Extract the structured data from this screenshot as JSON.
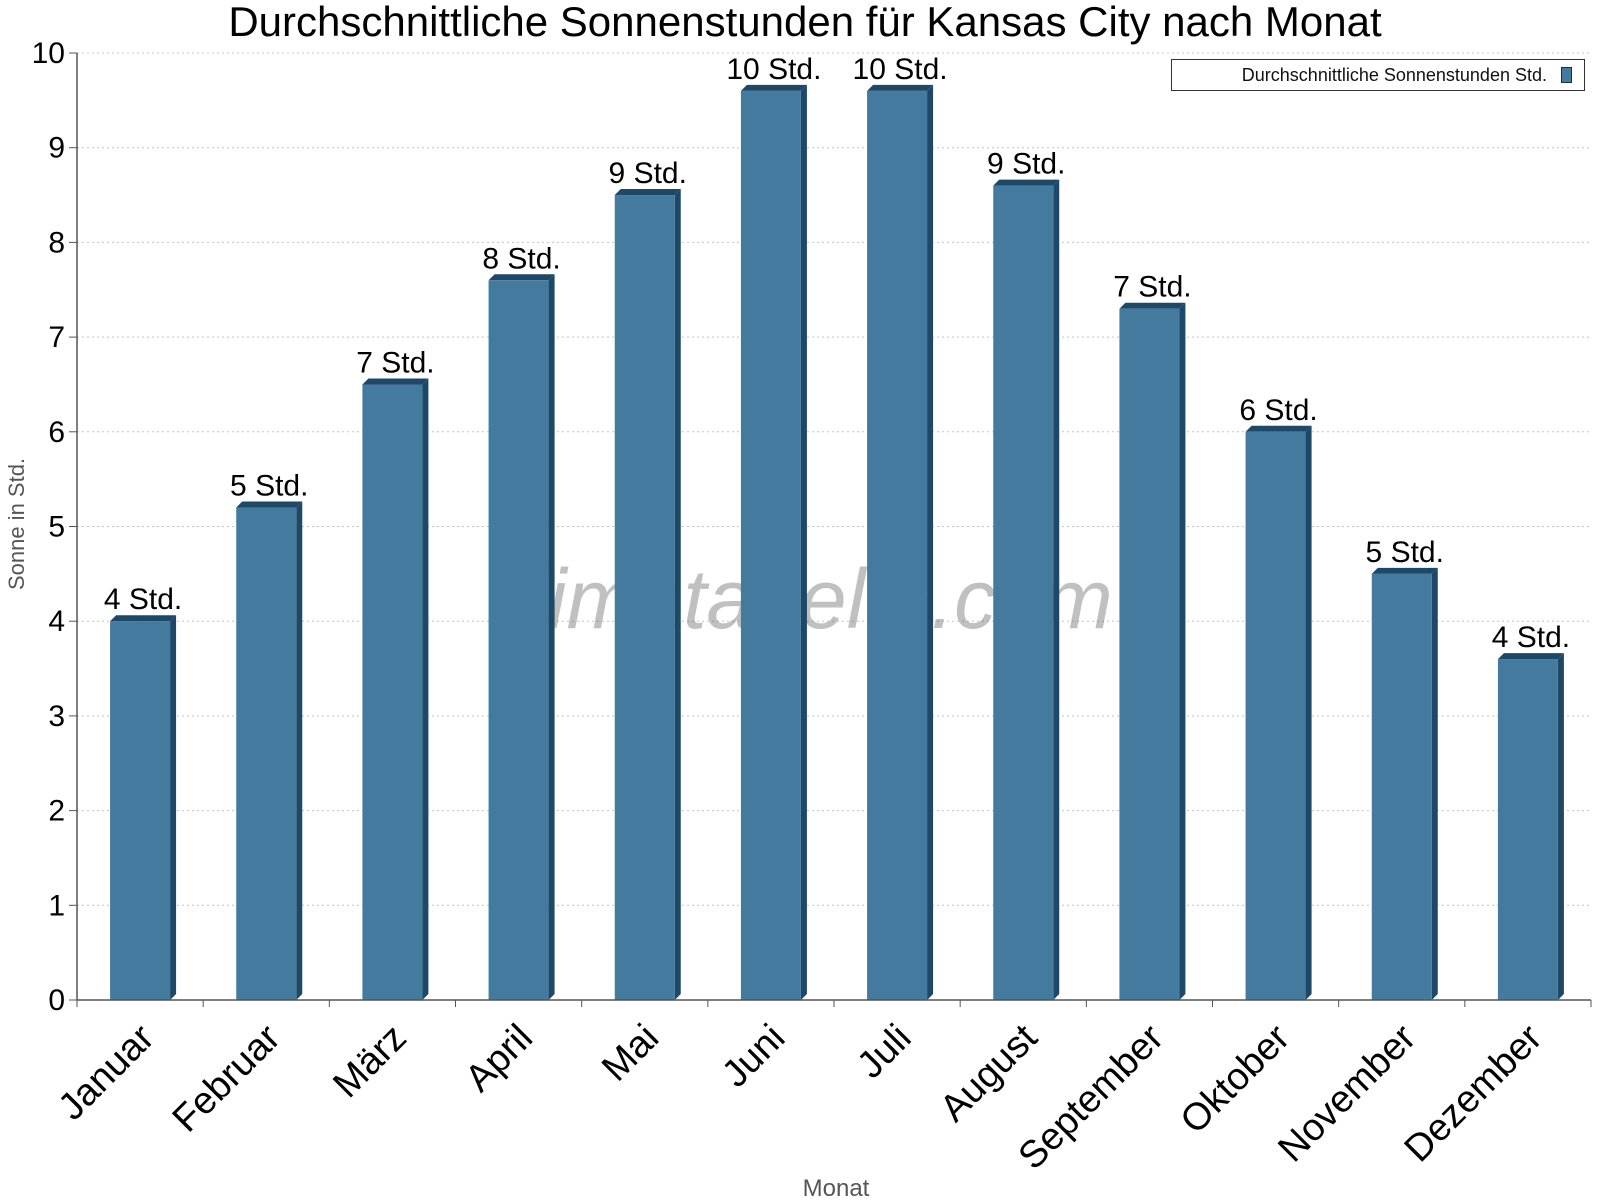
{
  "chart_data": {
    "type": "bar",
    "title": "Durchschnittliche Sonnenstunden für Kansas City nach Monat",
    "xlabel": "Monat",
    "ylabel": "Sonne in Std.",
    "categories": [
      "Januar",
      "Februar",
      "März",
      "April",
      "Mai",
      "Juni",
      "Juli",
      "August",
      "September",
      "Oktober",
      "November",
      "Dezember"
    ],
    "series": [
      {
        "name": "Durchschnittliche Sonnenstunden Std.",
        "values": [
          4.0,
          5.2,
          6.5,
          7.6,
          8.5,
          9.6,
          9.6,
          8.6,
          7.3,
          6.0,
          4.5,
          3.6
        ],
        "labels": [
          "4 Std.",
          "5 Std.",
          "7 Std.",
          "8 Std.",
          "9 Std.",
          "10 Std.",
          "10 Std.",
          "9 Std.",
          "7 Std.",
          "6 Std.",
          "5 Std.",
          "4 Std."
        ]
      }
    ],
    "ylim": [
      0,
      10
    ],
    "yticks": [
      "0",
      "1",
      "2",
      "3",
      "4",
      "5",
      "6",
      "7",
      "8",
      "9",
      "10"
    ],
    "grid": true,
    "legend_position": "top-right",
    "watermark": "klimatabelle.com",
    "colors": {
      "bar_face": "#447a9e",
      "bar_side": "#1e4868",
      "bar_top": "#1e4868",
      "grid": "#c4c4c4",
      "axis": "#555555",
      "watermark": "#4a4a4a"
    }
  }
}
